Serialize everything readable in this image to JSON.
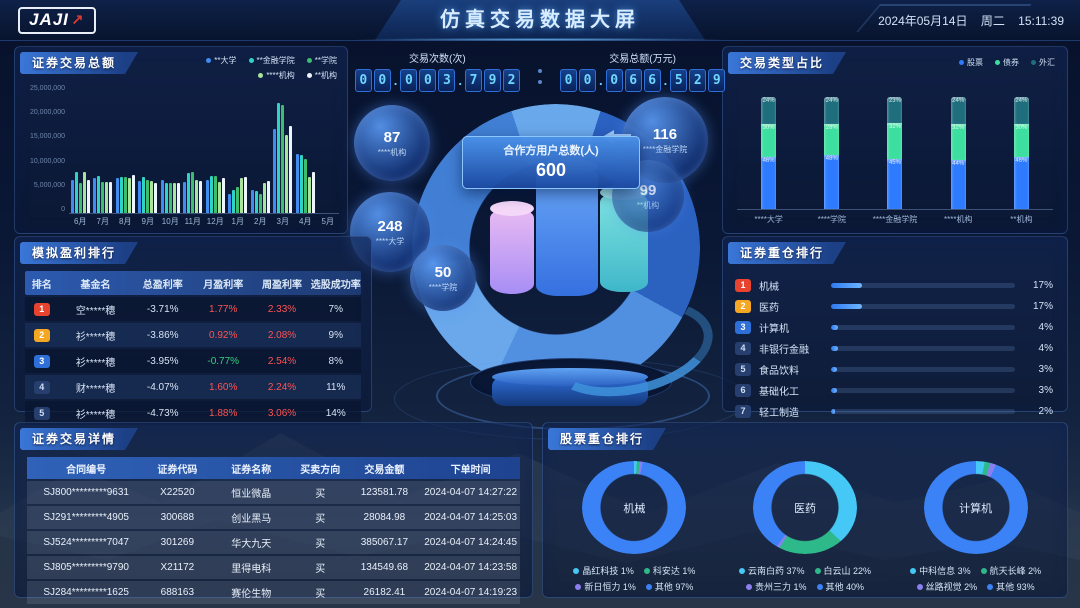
{
  "header": {
    "logo_text": "JAJI",
    "logo_arrow_icon": "↗",
    "title": "仿真交易数据大屏",
    "date": "2024年05月14日",
    "weekday": "周二",
    "time": "15:11:39"
  },
  "counters": [
    {
      "label": "交易次数(次)",
      "digits": "00.003.792"
    },
    {
      "label": "交易总额(万元)",
      "digits": "00.066.529"
    }
  ],
  "center": {
    "total_label": "合作方用户总数(人)",
    "total_value": "600",
    "bubbles": [
      {
        "value": "87",
        "label": "****机构"
      },
      {
        "value": "116",
        "label": "****金融学院"
      },
      {
        "value": "99",
        "label": "**机构"
      },
      {
        "value": "248",
        "label": "****大学"
      },
      {
        "value": "50",
        "label": "****学院"
      }
    ]
  },
  "panels": {
    "volume": {
      "title": "证券交易总额"
    },
    "type_ratio": {
      "title": "交易类型占比"
    },
    "profit_rank": {
      "title": "模拟盈利排行",
      "headers": [
        "排名",
        "基金名",
        "总盈利率",
        "月盈利率",
        "周盈利率",
        "选股成功率"
      ],
      "rows": [
        {
          "rank": "1",
          "name": "空*****穗",
          "total": "-3.71%",
          "month": "1.77%",
          "week": "2.33%",
          "success": "7%"
        },
        {
          "rank": "2",
          "name": "衫*****穗",
          "total": "-3.86%",
          "month": "0.92%",
          "week": "2.08%",
          "success": "9%"
        },
        {
          "rank": "3",
          "name": "衫*****穗",
          "total": "-3.95%",
          "month": "-0.77%",
          "week": "2.54%",
          "success": "8%"
        },
        {
          "rank": "4",
          "name": "财*****穗",
          "total": "-4.07%",
          "month": "1.60%",
          "week": "2.24%",
          "success": "11%"
        },
        {
          "rank": "5",
          "name": "衫*****穗",
          "total": "-4.73%",
          "month": "1.88%",
          "week": "3.06%",
          "success": "14%"
        }
      ]
    },
    "holdings_rank": {
      "title": "证券重仓排行"
    },
    "trade_detail": {
      "title": "证券交易详情",
      "headers": [
        "合同编号",
        "证券代码",
        "证券名称",
        "买卖方向",
        "交易金额",
        "下单时间"
      ],
      "rows": [
        [
          "SJ800*********9631",
          "X22520",
          "恒业微晶",
          "买",
          "123581.78",
          "2024-04-07 14:27:22"
        ],
        [
          "SJ291*********4905",
          "300688",
          "创业黑马",
          "买",
          "28084.98",
          "2024-04-07 14:25:03"
        ],
        [
          "SJ524*********7047",
          "301269",
          "华大九天",
          "买",
          "385067.17",
          "2024-04-07 14:24:45"
        ],
        [
          "SJ805*********9790",
          "X21172",
          "里得电科",
          "买",
          "134549.68",
          "2024-04-07 14:23:58"
        ],
        [
          "SJ284*********1625",
          "688163",
          "赛伦生物",
          "买",
          "26182.41",
          "2024-04-07 14:19:23"
        ]
      ]
    },
    "stock_rank": {
      "title": "股票重仓排行"
    }
  },
  "chart_data": [
    {
      "id": "volume",
      "type": "bar",
      "title": "证券交易总额",
      "categories": [
        "6月",
        "7月",
        "8月",
        "9月",
        "10月",
        "11月",
        "12月",
        "1月",
        "2月",
        "3月",
        "4月",
        "5月"
      ],
      "yticks": [
        "25,000,000",
        "20,000,000",
        "15,000,000",
        "10,000,000",
        "5,000,000",
        "0"
      ],
      "ylim": [
        0,
        25000000
      ],
      "series": [
        {
          "name": "**大学",
          "color": "#3f8cf2",
          "values": [
            6500000,
            6800000,
            6800000,
            6300000,
            6500000,
            6000000,
            6500000,
            3800000,
            4500000,
            16500000,
            11500000,
            0
          ]
        },
        {
          "name": "**金融学院",
          "color": "#2fd3c3",
          "values": [
            8000000,
            7200000,
            7000000,
            7000000,
            5800000,
            7800000,
            7200000,
            4500000,
            4300000,
            21500000,
            11300000,
            0
          ]
        },
        {
          "name": "**学院",
          "color": "#3dbd6d",
          "values": [
            5800000,
            6000000,
            7000000,
            6500000,
            5800000,
            8000000,
            7200000,
            5000000,
            3800000,
            21000000,
            10500000,
            0
          ]
        },
        {
          "name": "****机构",
          "color": "#a9e49a",
          "values": [
            8000000,
            6000000,
            6800000,
            6200000,
            5800000,
            6500000,
            6000000,
            6800000,
            5800000,
            15200000,
            7000000,
            0
          ]
        },
        {
          "name": "**机构",
          "color": "#eef5ff",
          "values": [
            6500000,
            6000000,
            7500000,
            5800000,
            5800000,
            6300000,
            6800000,
            7000000,
            6300000,
            17000000,
            8000000,
            0
          ]
        }
      ]
    },
    {
      "id": "type_ratio",
      "type": "bar",
      "title": "交易类型占比",
      "stacked": true,
      "unit": "%",
      "categories": [
        "****大学",
        "****学院",
        "****金融学院",
        "****机构",
        "**机构"
      ],
      "series": [
        {
          "name": "股票",
          "color": "#2e7bff",
          "values": [
            46,
            48,
            45,
            44,
            46
          ]
        },
        {
          "name": "债券",
          "color": "#3ddfa0",
          "values": [
            30,
            28,
            32,
            32,
            30
          ]
        },
        {
          "name": "外汇",
          "color": "#1f6e7e",
          "values": [
            24,
            24,
            23,
            24,
            24
          ]
        }
      ]
    },
    {
      "id": "holdings",
      "type": "bar",
      "title": "证券重仓排行",
      "unit": "%",
      "xlim": [
        0,
        100
      ],
      "categories": [
        "机械",
        "医药",
        "计算机",
        "非银行金融",
        "食品饮料",
        "基础化工",
        "轻工制造"
      ],
      "values": [
        17,
        17,
        4,
        4,
        3,
        3,
        2
      ]
    },
    {
      "id": "stock_rank",
      "type": "pie",
      "title": "股票重仓排行",
      "donuts": [
        {
          "center_label": "机械",
          "slices": [
            {
              "name": "晶红科技",
              "value": 1,
              "color": "#45c8f5"
            },
            {
              "name": "科安达",
              "value": 1,
              "color": "#2eb98a"
            },
            {
              "name": "新日恒力",
              "value": 1,
              "color": "#8a7ff0"
            },
            {
              "name": "其他",
              "value": 97,
              "color": "#3b82f6"
            }
          ]
        },
        {
          "center_label": "医药",
          "slices": [
            {
              "name": "云南白药",
              "value": 37,
              "color": "#45c8f5"
            },
            {
              "name": "白云山",
              "value": 22,
              "color": "#2eb98a"
            },
            {
              "name": "贵州三力",
              "value": 1,
              "color": "#8a7ff0"
            },
            {
              "name": "其他",
              "value": 40,
              "color": "#3b82f6"
            }
          ]
        },
        {
          "center_label": "计算机",
          "slices": [
            {
              "name": "中科信息",
              "value": 3,
              "color": "#45c8f5"
            },
            {
              "name": "航天长峰",
              "value": 2,
              "color": "#2eb98a"
            },
            {
              "name": "丝路视觉",
              "value": 2,
              "color": "#8a7ff0"
            },
            {
              "name": "其他",
              "value": 93,
              "color": "#3b82f6"
            }
          ]
        }
      ]
    }
  ]
}
